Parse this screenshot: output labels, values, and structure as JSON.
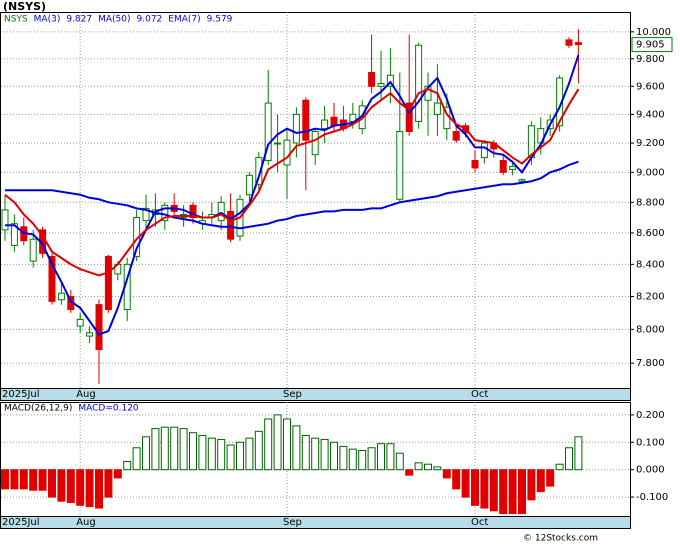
{
  "chart_data": [
    {
      "type": "candlestick",
      "title": "(NSYS)",
      "ticker": "NSYS",
      "log_scale": true,
      "grid": true,
      "up_color": "#008000",
      "down_color": "#e00000",
      "categories": [
        "2025Jul",
        null,
        null,
        null,
        null,
        null,
        null,
        null,
        "Aug",
        null,
        null,
        null,
        null,
        null,
        null,
        null,
        null,
        null,
        null,
        null,
        null,
        null,
        null,
        null,
        null,
        null,
        null,
        null,
        null,
        null,
        "Sep",
        null,
        null,
        null,
        null,
        null,
        null,
        null,
        null,
        null,
        null,
        null,
        null,
        null,
        null,
        null,
        null,
        null,
        null,
        null,
        "Oct",
        null,
        null,
        null,
        null,
        null,
        null,
        null,
        null,
        null,
        null,
        null
      ],
      "open": [
        8.62,
        8.52,
        8.64,
        8.42,
        8.62,
        8.45,
        8.18,
        8.2,
        8.02,
        7.96,
        8.15,
        8.45,
        8.34,
        8.12,
        8.45,
        8.68,
        8.72,
        8.68,
        8.78,
        8.7,
        8.78,
        8.66,
        8.7,
        8.68,
        8.74,
        8.58,
        8.85,
        8.92,
        9.08,
        9.2,
        9.05,
        9.2,
        9.5,
        9.12,
        9.3,
        9.38,
        9.36,
        9.35,
        9.3,
        9.7,
        9.6,
        9.6,
        8.82,
        9.48,
        9.35,
        9.5,
        9.4,
        9.3,
        9.28,
        9.32,
        9.08,
        9.1,
        9.2,
        9.08,
        9.02,
        8.94,
        9.1,
        9.2,
        9.3,
        9.32,
        9.94,
        9.92
      ],
      "high": [
        8.85,
        8.72,
        8.7,
        8.62,
        8.64,
        8.48,
        8.28,
        8.24,
        8.1,
        8.02,
        8.18,
        8.46,
        8.42,
        8.44,
        8.75,
        8.85,
        8.86,
        8.8,
        8.86,
        8.78,
        8.8,
        8.74,
        8.8,
        8.84,
        8.86,
        8.85,
        9.0,
        9.14,
        9.72,
        9.4,
        9.3,
        9.45,
        9.52,
        9.3,
        9.46,
        9.48,
        9.46,
        9.48,
        9.5,
        9.98,
        9.86,
        9.88,
        9.7,
        9.98,
        9.92,
        9.7,
        9.76,
        9.55,
        9.32,
        9.34,
        9.15,
        9.22,
        9.22,
        9.12,
        9.08,
        8.96,
        9.35,
        9.38,
        9.4,
        9.68,
        9.96,
        10.02
      ],
      "low": [
        8.55,
        8.48,
        8.52,
        8.38,
        8.44,
        8.15,
        8.15,
        8.1,
        7.98,
        7.92,
        7.68,
        8.1,
        8.3,
        8.05,
        8.42,
        8.62,
        8.64,
        8.62,
        8.7,
        8.64,
        8.66,
        8.62,
        8.66,
        8.62,
        8.54,
        8.55,
        8.8,
        8.88,
        9.05,
        9.0,
        8.82,
        9.1,
        8.88,
        9.05,
        9.2,
        9.28,
        9.28,
        9.3,
        9.26,
        9.55,
        9.5,
        9.48,
        8.8,
        9.25,
        9.3,
        9.25,
        9.25,
        9.22,
        9.2,
        9.24,
        9.0,
        9.06,
        9.1,
        8.98,
        8.98,
        8.92,
        9.05,
        9.12,
        9.25,
        9.28,
        9.88,
        9.62
      ],
      "close": [
        8.75,
        8.66,
        8.55,
        8.56,
        8.47,
        8.17,
        8.22,
        8.12,
        8.06,
        7.98,
        7.88,
        8.12,
        8.4,
        8.4,
        8.7,
        8.76,
        8.75,
        8.78,
        8.74,
        8.72,
        8.7,
        8.68,
        8.72,
        8.8,
        8.56,
        8.82,
        8.98,
        9.1,
        9.48,
        9.2,
        9.22,
        9.4,
        9.22,
        9.28,
        9.36,
        9.32,
        9.3,
        9.4,
        9.46,
        9.6,
        9.62,
        9.68,
        9.28,
        9.28,
        9.9,
        9.6,
        9.48,
        9.45,
        9.22,
        9.27,
        9.03,
        9.2,
        9.16,
        9.0,
        9.04,
        8.95,
        9.32,
        9.3,
        9.36,
        9.66,
        9.9,
        9.905
      ],
      "series": [
        {
          "name": "MA(3)",
          "color": "#0000dd",
          "values": [
            8.65,
            8.65,
            8.6,
            8.59,
            8.53,
            8.4,
            8.29,
            8.17,
            8.13,
            8.05,
            7.97,
            7.99,
            8.13,
            8.31,
            8.5,
            8.62,
            8.74,
            8.76,
            8.76,
            8.75,
            8.72,
            8.7,
            8.7,
            8.73,
            8.69,
            8.73,
            8.79,
            8.97,
            9.19,
            9.26,
            9.3,
            9.27,
            9.28,
            9.3,
            9.29,
            9.32,
            9.33,
            9.34,
            9.39,
            9.51,
            9.56,
            9.63,
            9.53,
            9.41,
            9.49,
            9.59,
            9.66,
            9.51,
            9.32,
            9.26,
            9.17,
            9.17,
            9.13,
            9.12,
            9.07,
            9.0,
            9.1,
            9.19,
            9.33,
            9.45,
            9.62,
            9.827
          ]
        },
        {
          "name": "MA(50)",
          "color": "#0000dd",
          "values": [
            8.88,
            8.88,
            8.88,
            8.88,
            8.88,
            8.88,
            8.87,
            8.86,
            8.85,
            8.83,
            8.82,
            8.8,
            8.79,
            8.78,
            8.76,
            8.75,
            8.73,
            8.72,
            8.7,
            8.69,
            8.68,
            8.66,
            8.65,
            8.64,
            8.64,
            8.63,
            8.64,
            8.65,
            8.66,
            8.68,
            8.69,
            8.71,
            8.72,
            8.73,
            8.74,
            8.74,
            8.75,
            8.75,
            8.75,
            8.76,
            8.76,
            8.78,
            8.8,
            8.81,
            8.82,
            8.83,
            8.84,
            8.86,
            8.87,
            8.88,
            8.89,
            8.9,
            8.91,
            8.92,
            8.92,
            8.93,
            8.94,
            8.96,
            9.0,
            9.02,
            9.05,
            9.072
          ]
        },
        {
          "name": "EMA(7)",
          "color": "#e00000",
          "values": [
            8.85,
            8.8,
            8.72,
            8.66,
            8.58,
            8.48,
            8.44,
            8.4,
            8.37,
            8.35,
            8.33,
            8.35,
            8.4,
            8.48,
            8.56,
            8.62,
            8.66,
            8.7,
            8.71,
            8.71,
            8.71,
            8.7,
            8.7,
            8.72,
            8.68,
            8.7,
            8.78,
            8.87,
            9.02,
            9.06,
            9.1,
            9.18,
            9.2,
            9.22,
            9.26,
            9.28,
            9.3,
            9.33,
            9.37,
            9.45,
            9.5,
            9.55,
            9.48,
            9.43,
            9.55,
            9.58,
            9.55,
            9.4,
            9.33,
            9.3,
            9.22,
            9.21,
            9.2,
            9.15,
            9.1,
            9.06,
            9.12,
            9.17,
            9.22,
            9.35,
            9.47,
            9.579
          ]
        }
      ],
      "ylim": [
        7.656,
        10.15
      ],
      "yticks": [
        {
          "value": 7.8,
          "label": "7.800"
        },
        {
          "value": 8.0,
          "label": "8.000"
        },
        {
          "value": 8.2,
          "label": "8.200"
        },
        {
          "value": 8.4,
          "label": "8.400"
        },
        {
          "value": 8.6,
          "label": "8.600"
        },
        {
          "value": 8.8,
          "label": "8.800"
        },
        {
          "value": 9.0,
          "label": "9.000"
        },
        {
          "value": 9.2,
          "label": "9.200"
        },
        {
          "value": 9.4,
          "label": "9.400"
        },
        {
          "value": 9.6,
          "label": "9.600"
        },
        {
          "value": 9.8,
          "label": "9.800"
        },
        {
          "value": 10.0,
          "label": "10.000"
        }
      ]
    },
    {
      "type": "bar",
      "title": "MACD(26,12,9)",
      "current": "MACD=0.120",
      "grid": true,
      "up_color": "#006400",
      "down_color": "#e00000",
      "categories": [
        "2025Jul",
        null,
        null,
        null,
        null,
        null,
        null,
        null,
        "Aug",
        null,
        null,
        null,
        null,
        null,
        null,
        null,
        null,
        null,
        null,
        null,
        null,
        null,
        null,
        null,
        null,
        null,
        null,
        null,
        null,
        null,
        "Sep",
        null,
        null,
        null,
        null,
        null,
        null,
        null,
        null,
        null,
        null,
        null,
        null,
        null,
        null,
        null,
        null,
        null,
        null,
        null,
        "Oct",
        null,
        null,
        null,
        null,
        null,
        null,
        null,
        null,
        null,
        null,
        null
      ],
      "values": [
        -0.07,
        -0.07,
        -0.07,
        -0.075,
        -0.075,
        -0.1,
        -0.115,
        -0.12,
        -0.13,
        -0.135,
        -0.14,
        -0.1,
        -0.03,
        0.03,
        0.08,
        0.12,
        0.15,
        0.155,
        0.155,
        0.15,
        0.135,
        0.125,
        0.115,
        0.11,
        0.09,
        0.1,
        0.115,
        0.14,
        0.185,
        0.2,
        0.185,
        0.16,
        0.125,
        0.115,
        0.11,
        0.1,
        0.085,
        0.075,
        0.07,
        0.08,
        0.095,
        0.095,
        0.06,
        -0.02,
        0.025,
        0.02,
        0.01,
        -0.03,
        -0.07,
        -0.1,
        -0.13,
        -0.14,
        -0.15,
        -0.16,
        -0.16,
        -0.16,
        -0.11,
        -0.08,
        -0.06,
        0.02,
        0.08,
        0.12
      ],
      "ylim": [
        -0.169,
        0.247
      ],
      "yticks": [
        {
          "value": -0.1,
          "label": "-0.100"
        },
        {
          "value": 0,
          "label": "0.000"
        },
        {
          "value": 0.1,
          "label": "0.100"
        },
        {
          "value": 0.2,
          "label": "0.200"
        }
      ]
    }
  ],
  "footer": "© 12Stocks.com"
}
